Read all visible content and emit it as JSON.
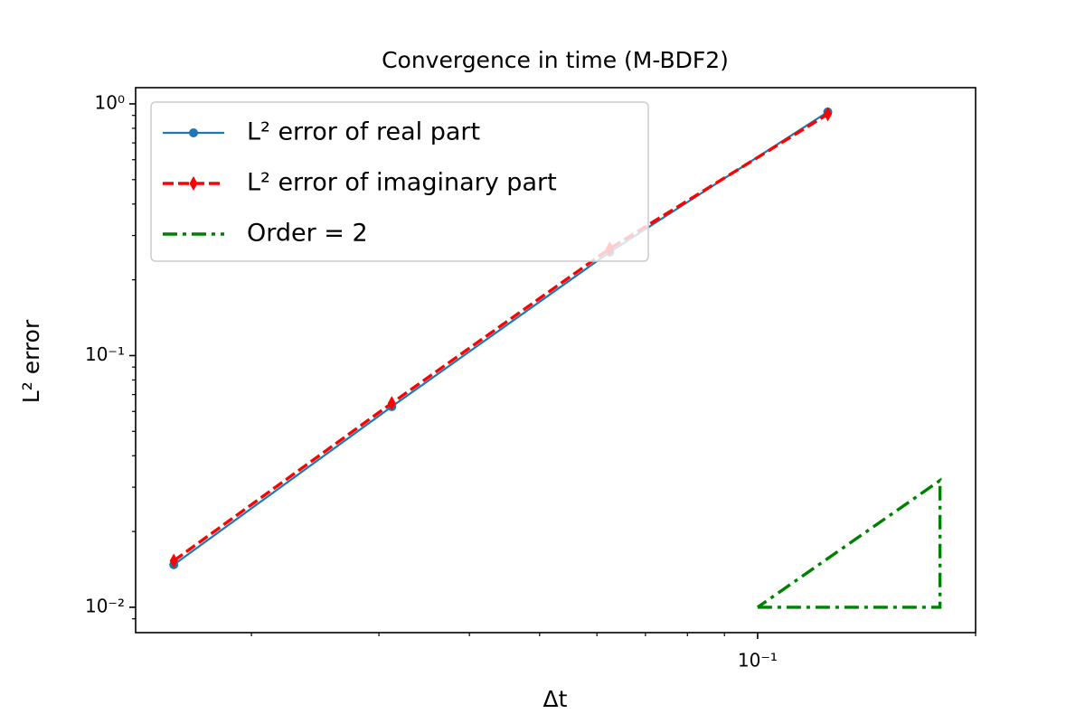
{
  "chart_data": {
    "type": "line",
    "title": "Convergence in time (M-BDF2)",
    "x_label": "Δt",
    "y_label": "L² error",
    "xscale": "log",
    "yscale": "log",
    "xlim": [
      0.01384,
      0.2
    ],
    "ylim": [
      0.00793,
      1.16
    ],
    "xticks": [
      {
        "value": 0.1,
        "label": "10⁻¹"
      }
    ],
    "xminorticks": [
      0.02,
      0.03,
      0.04,
      0.05,
      0.06,
      0.07,
      0.08,
      0.09,
      0.2
    ],
    "yticks": [
      {
        "value": 0.01,
        "label": "10⁻²"
      },
      {
        "value": 0.1,
        "label": "10⁻¹"
      },
      {
        "value": 1,
        "label": "10⁰"
      }
    ],
    "yminorticks": [
      0.009,
      0.02,
      0.03,
      0.04,
      0.05,
      0.06,
      0.07,
      0.08,
      0.09,
      0.2,
      0.3,
      0.4,
      0.5,
      0.6,
      0.7,
      0.8,
      0.9
    ],
    "legend": "upper left",
    "series": [
      {
        "name": "L² error of real part",
        "color": "#1f77b4",
        "dash": "solid",
        "marker": "circle",
        "x": [
          0.015625,
          0.03125,
          0.0625,
          0.125
        ],
        "values": [
          0.01476,
          0.0627,
          0.2578,
          0.929
        ]
      },
      {
        "name": "L² error of imaginary part",
        "color": "#ff0000",
        "dash": "dashed",
        "marker": "thin_diamond",
        "x": [
          0.015625,
          0.03125,
          0.0625,
          0.125
        ],
        "values": [
          0.0153,
          0.0647,
          0.266,
          0.91
        ]
      },
      {
        "name": "Order = 2",
        "color": "#008000",
        "dash": "dashdot",
        "marker": "none",
        "x": [
          0.1,
          0.1786,
          0.1786,
          0.1
        ],
        "values": [
          0.01,
          0.01,
          0.0319,
          0.01
        ]
      }
    ]
  }
}
